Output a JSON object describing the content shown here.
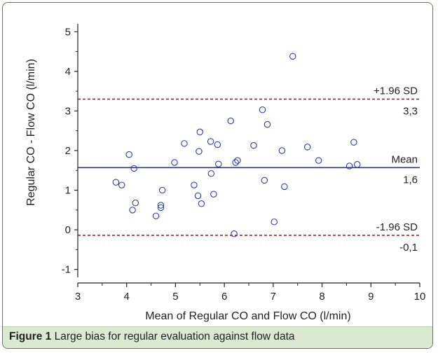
{
  "caption": {
    "label": "Figure 1",
    "text": "Large bias for regular evaluation against flow data"
  },
  "chart_data": {
    "type": "scatter",
    "title": "",
    "xlabel": "Mean of Regular CO and Flow CO (l/min)",
    "ylabel": "Regular CO - Flow CO (l/min)",
    "xlim": [
      3,
      10
    ],
    "ylim": [
      -1.2,
      5.2
    ],
    "x_ticks": [
      3,
      4,
      5,
      6,
      7,
      8,
      9,
      10
    ],
    "y_ticks": [
      -1,
      0,
      1,
      2,
      3,
      4,
      5
    ],
    "grid": false,
    "marker_color": "#2f3fa0",
    "mean_line_color": "#2b3a7a",
    "sd_line_color": "#8b1a1a",
    "reference_lines": [
      {
        "name": "upper",
        "label": "+1.96 SD",
        "value_label": "3,3",
        "y": 3.3,
        "style": "dashed"
      },
      {
        "name": "mean",
        "label": "Mean",
        "value_label": "1,6",
        "y": 1.57,
        "style": "solid"
      },
      {
        "name": "lower",
        "label": "-1.96 SD",
        "value_label": "-0,1",
        "y": -0.14,
        "style": "dashed"
      }
    ],
    "points": [
      {
        "x": 3.78,
        "y": 1.2
      },
      {
        "x": 3.9,
        "y": 1.13
      },
      {
        "x": 4.05,
        "y": 1.9
      },
      {
        "x": 4.15,
        "y": 1.55
      },
      {
        "x": 4.12,
        "y": 0.5
      },
      {
        "x": 4.18,
        "y": 0.68
      },
      {
        "x": 4.6,
        "y": 0.35
      },
      {
        "x": 4.7,
        "y": 0.62
      },
      {
        "x": 4.7,
        "y": 0.56
      },
      {
        "x": 4.73,
        "y": 1.0
      },
      {
        "x": 4.98,
        "y": 1.7
      },
      {
        "x": 5.18,
        "y": 2.18
      },
      {
        "x": 5.38,
        "y": 1.13
      },
      {
        "x": 5.46,
        "y": 0.86
      },
      {
        "x": 5.48,
        "y": 1.98
      },
      {
        "x": 5.5,
        "y": 2.47
      },
      {
        "x": 5.53,
        "y": 0.66
      },
      {
        "x": 5.72,
        "y": 2.23
      },
      {
        "x": 5.73,
        "y": 1.42
      },
      {
        "x": 5.78,
        "y": 0.9
      },
      {
        "x": 5.86,
        "y": 2.15
      },
      {
        "x": 5.88,
        "y": 1.66
      },
      {
        "x": 6.13,
        "y": 2.75
      },
      {
        "x": 6.2,
        "y": -0.1
      },
      {
        "x": 6.23,
        "y": 1.7
      },
      {
        "x": 6.27,
        "y": 1.75
      },
      {
        "x": 6.6,
        "y": 2.13
      },
      {
        "x": 6.78,
        "y": 3.03
      },
      {
        "x": 6.82,
        "y": 1.25
      },
      {
        "x": 6.88,
        "y": 2.66
      },
      {
        "x": 7.02,
        "y": 0.2
      },
      {
        "x": 7.18,
        "y": 2.0
      },
      {
        "x": 7.23,
        "y": 1.09
      },
      {
        "x": 7.4,
        "y": 4.38
      },
      {
        "x": 7.7,
        "y": 2.09
      },
      {
        "x": 7.93,
        "y": 1.75
      },
      {
        "x": 8.56,
        "y": 1.61
      },
      {
        "x": 8.65,
        "y": 2.21
      },
      {
        "x": 8.72,
        "y": 1.65
      }
    ]
  }
}
